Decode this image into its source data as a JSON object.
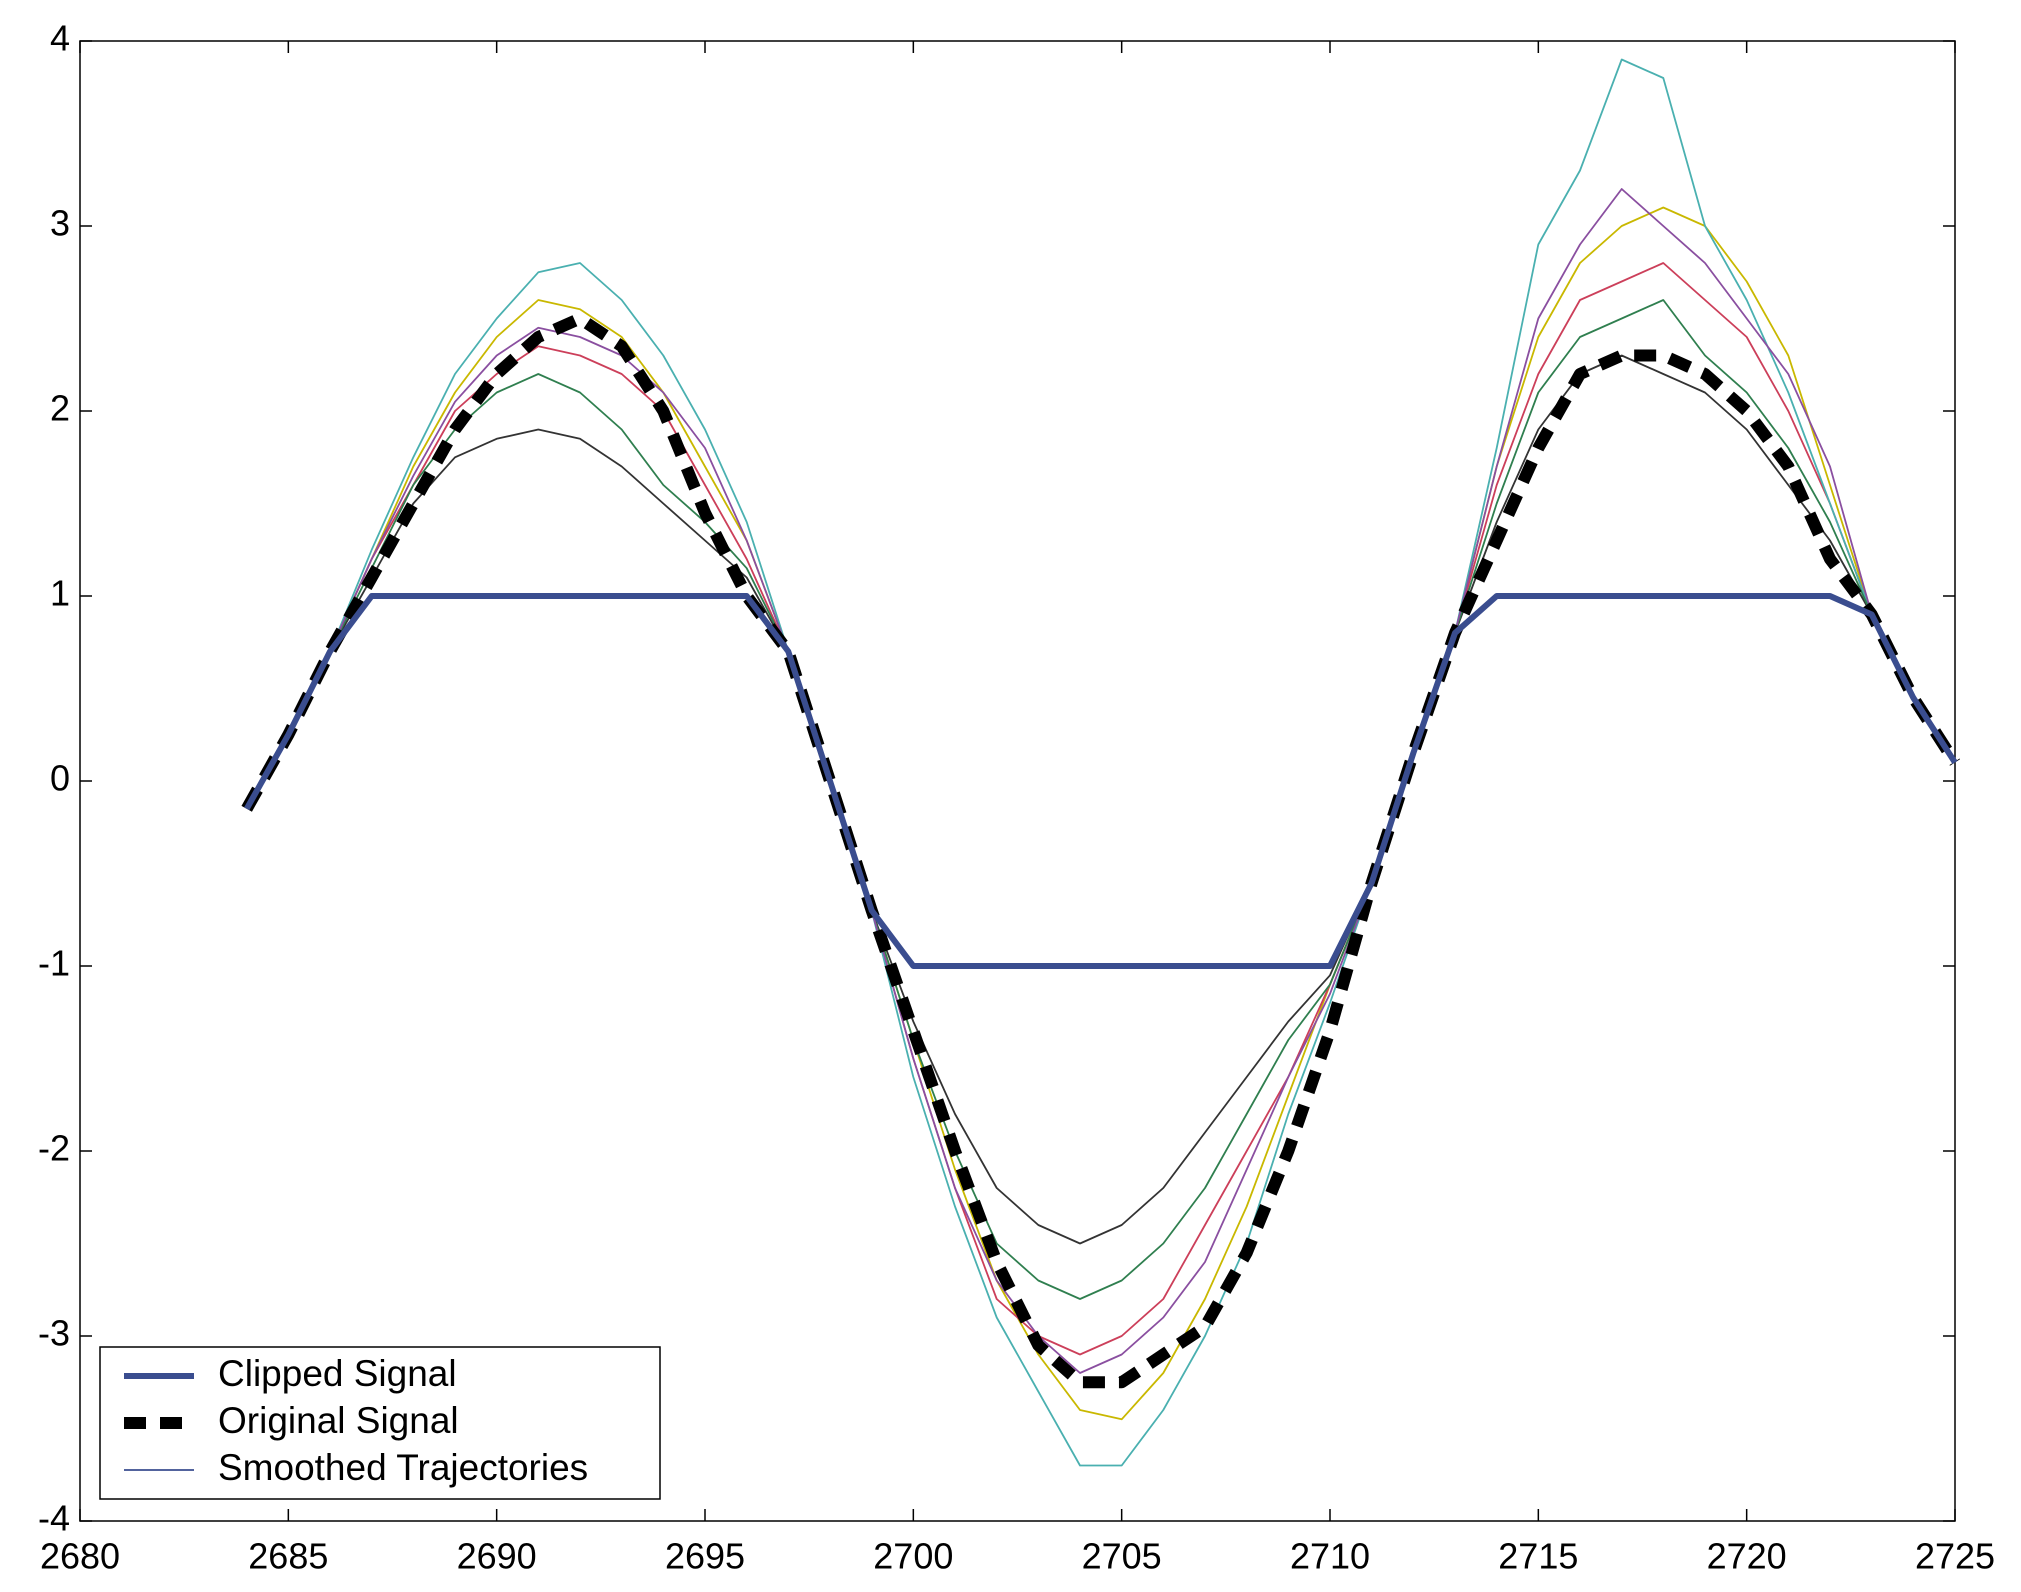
{
  "chart_data": {
    "type": "line",
    "x": [
      2684,
      2685,
      2686,
      2687,
      2688,
      2689,
      2690,
      2691,
      2692,
      2693,
      2694,
      2695,
      2696,
      2697,
      2698,
      2699,
      2700,
      2701,
      2702,
      2703,
      2704,
      2705,
      2706,
      2707,
      2708,
      2709,
      2710,
      2711,
      2712,
      2713,
      2714,
      2715,
      2716,
      2717,
      2718,
      2719,
      2720,
      2721,
      2722,
      2723,
      2724,
      2725
    ],
    "xlim": [
      2680,
      2725
    ],
    "xticks": [
      2680,
      2685,
      2690,
      2695,
      2700,
      2705,
      2710,
      2715,
      2720,
      2725
    ],
    "ylim": [
      -4,
      4
    ],
    "yticks": [
      -4,
      -3,
      -2,
      -1,
      0,
      1,
      2,
      3,
      4
    ],
    "grid": false,
    "legend": "lower left",
    "series": [
      {
        "name": "Clipped Signal",
        "color": "#3a4d8f",
        "values": [
          -0.15,
          0.25,
          0.7,
          1,
          1,
          1,
          1,
          1,
          1,
          1,
          1,
          1,
          1,
          0.7,
          0.0,
          -0.7,
          -1,
          -1,
          -1,
          -1,
          -1,
          -1,
          -1,
          -1,
          -1,
          -1,
          -1,
          -0.55,
          0.15,
          0.8,
          1,
          1,
          1,
          1,
          1,
          1,
          1,
          1,
          1,
          0.9,
          0.45,
          0.1
        ]
      },
      {
        "name": "Original Signal",
        "color": "#000000",
        "values": [
          -0.15,
          0.25,
          0.7,
          1.1,
          1.5,
          1.9,
          2.2,
          2.4,
          2.5,
          2.35,
          2.0,
          1.45,
          1.0,
          0.7,
          0.0,
          -0.7,
          -1.35,
          -2.0,
          -2.6,
          -3.05,
          -3.25,
          -3.25,
          -3.1,
          -2.95,
          -2.55,
          -2.0,
          -1.35,
          -0.55,
          0.15,
          0.8,
          1.3,
          1.8,
          2.2,
          2.3,
          2.3,
          2.2,
          2.0,
          1.7,
          1.2,
          0.9,
          0.45,
          0.1
        ]
      },
      {
        "name": "Smoothed Trajectories",
        "color": "#3a4d8f",
        "trajectories": [
          {
            "color": "#c9b800",
            "values": [
              null,
              null,
              0.7,
              1.2,
              1.7,
              2.1,
              2.4,
              2.6,
              2.55,
              2.4,
              2.1,
              1.7,
              1.3,
              0.7,
              null,
              -0.7,
              -1.4,
              -2.1,
              -2.7,
              -3.1,
              -3.4,
              -3.45,
              -3.2,
              -2.8,
              -2.3,
              -1.7,
              -1.1,
              -0.55,
              null,
              0.8,
              1.7,
              2.4,
              2.8,
              3.0,
              3.1,
              3.0,
              2.7,
              2.3,
              1.6,
              0.9,
              null,
              null
            ]
          },
          {
            "color": "#333333",
            "values": [
              null,
              null,
              0.7,
              1.1,
              1.5,
              1.75,
              1.85,
              1.9,
              1.85,
              1.7,
              1.5,
              1.3,
              1.1,
              0.7,
              null,
              -0.7,
              -1.3,
              -1.8,
              -2.2,
              -2.4,
              -2.5,
              -2.4,
              -2.2,
              -1.9,
              -1.6,
              -1.3,
              -1.05,
              -0.55,
              null,
              0.8,
              1.4,
              1.9,
              2.2,
              2.3,
              2.2,
              2.1,
              1.9,
              1.6,
              1.3,
              0.9,
              null,
              null
            ]
          },
          {
            "color": "#cc3f5a",
            "values": [
              null,
              null,
              0.7,
              1.2,
              1.6,
              2.0,
              2.2,
              2.35,
              2.3,
              2.2,
              2.0,
              1.6,
              1.2,
              0.7,
              null,
              -0.7,
              -1.5,
              -2.2,
              -2.8,
              -3.0,
              -3.1,
              -3.0,
              -2.8,
              -2.4,
              -2.0,
              -1.6,
              -1.1,
              -0.55,
              null,
              0.8,
              1.6,
              2.2,
              2.6,
              2.7,
              2.8,
              2.6,
              2.4,
              2.0,
              1.5,
              0.9,
              null,
              null
            ]
          },
          {
            "color": "#4ab0b0",
            "values": [
              null,
              null,
              0.7,
              1.25,
              1.75,
              2.2,
              2.5,
              2.75,
              2.8,
              2.6,
              2.3,
              1.9,
              1.4,
              0.7,
              null,
              -0.7,
              -1.6,
              -2.3,
              -2.9,
              -3.3,
              -3.7,
              -3.7,
              -3.4,
              -3.0,
              -2.5,
              -1.8,
              -1.2,
              -0.55,
              null,
              0.8,
              1.8,
              2.9,
              3.3,
              3.9,
              3.8,
              3.0,
              2.6,
              2.1,
              1.5,
              0.9,
              null,
              null
            ]
          },
          {
            "color": "#2f7f4f",
            "values": [
              null,
              null,
              0.7,
              1.15,
              1.6,
              1.9,
              2.1,
              2.2,
              2.1,
              1.9,
              1.6,
              1.4,
              1.15,
              0.7,
              null,
              -0.7,
              -1.4,
              -2.0,
              -2.5,
              -2.7,
              -2.8,
              -2.7,
              -2.5,
              -2.2,
              -1.8,
              -1.4,
              -1.1,
              -0.55,
              null,
              0.8,
              1.5,
              2.1,
              2.4,
              2.5,
              2.6,
              2.3,
              2.1,
              1.8,
              1.4,
              0.9,
              null,
              null
            ]
          },
          {
            "color": "#8a4fa0",
            "values": [
              null,
              null,
              0.7,
              1.2,
              1.65,
              2.05,
              2.3,
              2.45,
              2.4,
              2.3,
              2.1,
              1.8,
              1.3,
              0.7,
              null,
              -0.7,
              -1.5,
              -2.2,
              -2.7,
              -3.0,
              -3.2,
              -3.1,
              -2.9,
              -2.6,
              -2.1,
              -1.6,
              -1.15,
              -0.55,
              null,
              0.8,
              1.7,
              2.5,
              2.9,
              3.2,
              3.0,
              2.8,
              2.5,
              2.2,
              1.7,
              0.9,
              null,
              null
            ]
          }
        ]
      }
    ]
  }
}
